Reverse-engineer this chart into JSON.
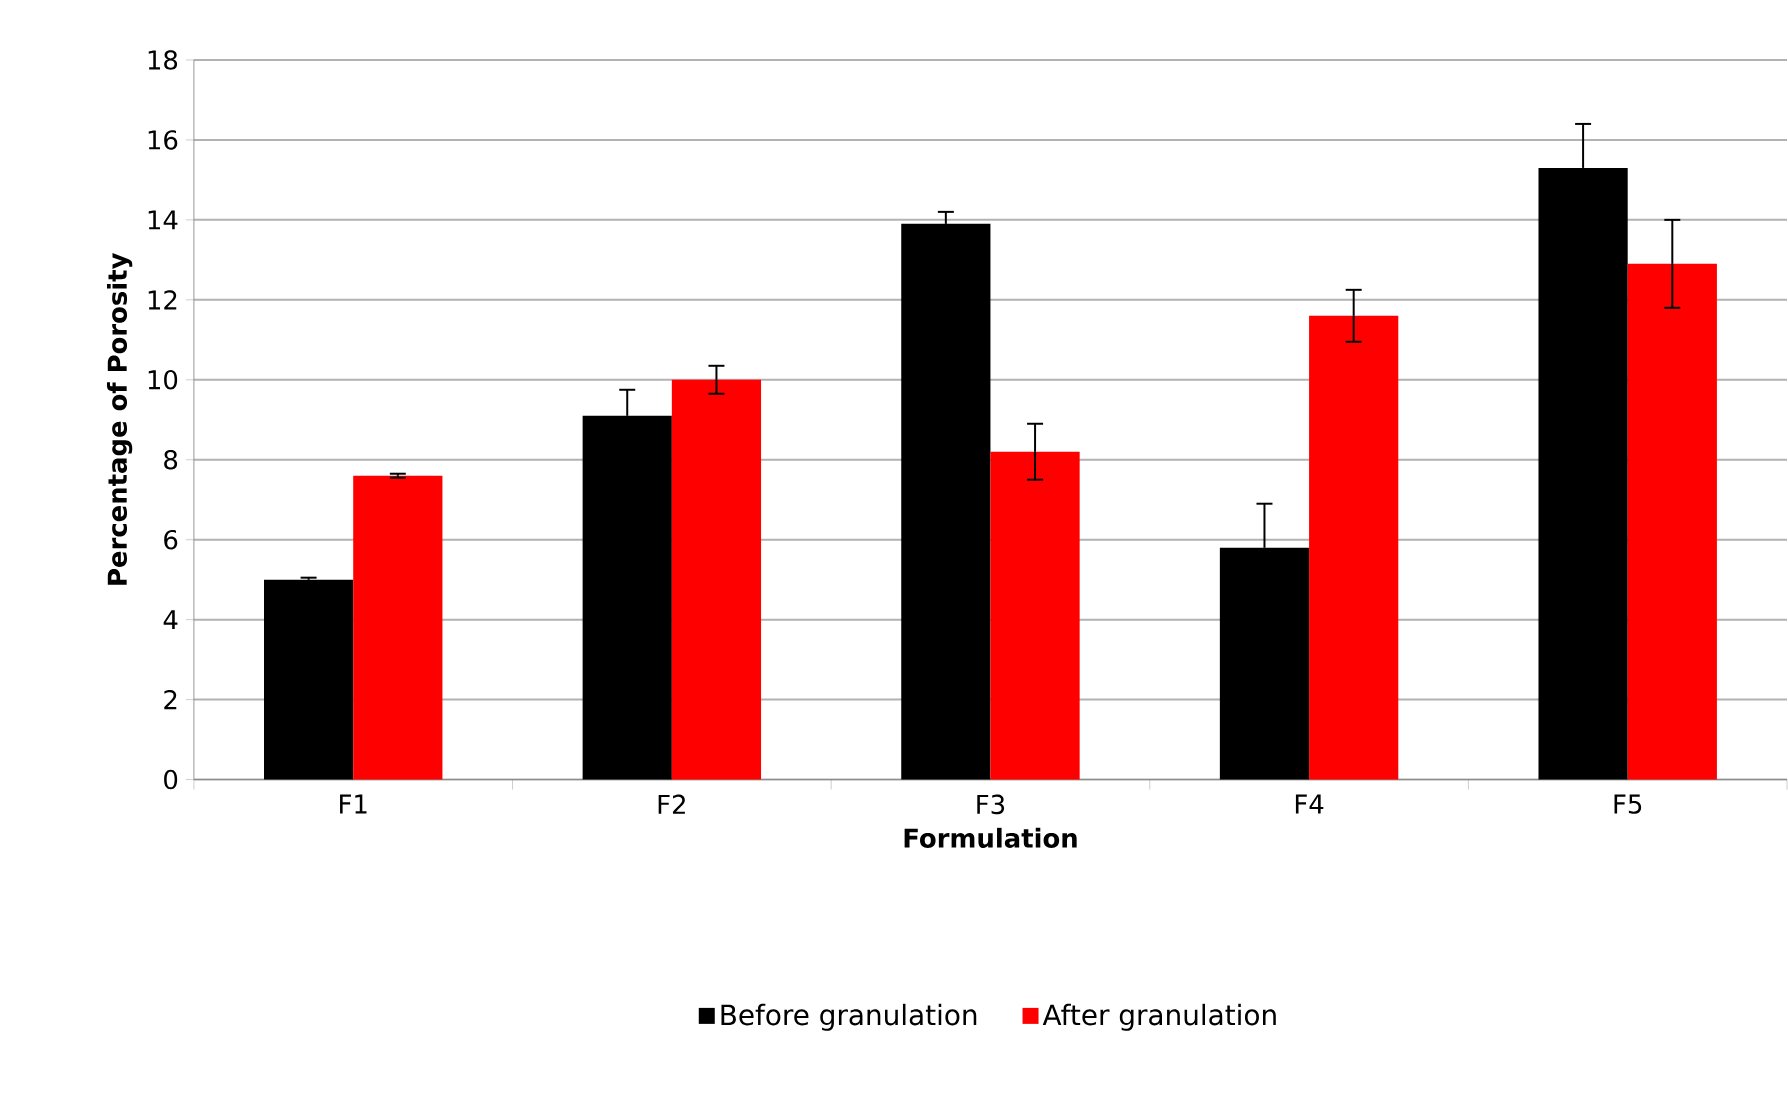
{
  "chart_data": {
    "type": "bar",
    "xlabel": "Formulation",
    "ylabel": "Percentage of Porosity",
    "categories": [
      "F1",
      "F2",
      "F3",
      "F4",
      "F5"
    ],
    "series": [
      {
        "name": "Before granulation",
        "color": "#000000",
        "values": [
          5.0,
          9.1,
          13.9,
          5.8,
          15.3
        ],
        "errors": [
          0.05,
          0.65,
          0.3,
          1.1,
          1.1
        ]
      },
      {
        "name": "After granulation",
        "color": "#ff0000",
        "values": [
          7.6,
          10.0,
          8.2,
          11.6,
          12.9
        ],
        "errors": [
          0.05,
          0.35,
          0.7,
          0.65,
          1.1
        ]
      }
    ],
    "ylim": [
      0,
      18
    ],
    "yticks": [
      0,
      2,
      4,
      6,
      8,
      10,
      12,
      14,
      16,
      18
    ],
    "grid": "y",
    "legend": "bottom"
  }
}
